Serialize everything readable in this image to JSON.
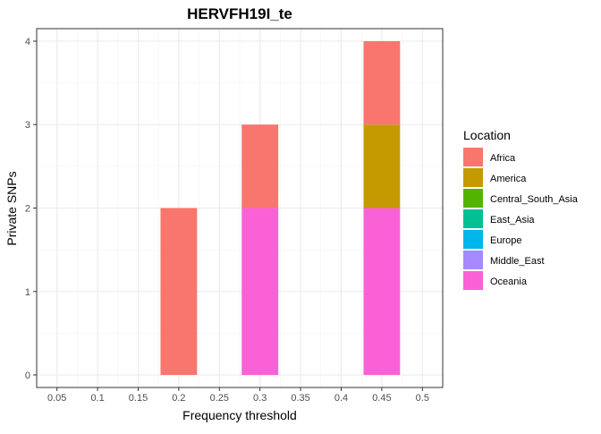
{
  "chart_data": {
    "type": "bar",
    "stacked": true,
    "title": "HERVFH19I_te",
    "xlabel": "Frequency threshold",
    "ylabel": "Private SNPs",
    "x_ticks": [
      "0.05",
      "0.1",
      "0.15",
      "0.2",
      "0.25",
      "0.3",
      "0.35",
      "0.4",
      "0.45",
      "0.5"
    ],
    "y_ticks": [
      "0",
      "1",
      "2",
      "3",
      "4"
    ],
    "xlim": [
      0.025,
      0.525
    ],
    "ylim": [
      -0.15,
      4.15
    ],
    "bar_width": 0.045,
    "grid": true,
    "legend_position": "right",
    "legend": {
      "title": "Location",
      "entries": [
        {
          "name": "Africa",
          "color": "#F8766D"
        },
        {
          "name": "America",
          "color": "#C49A00"
        },
        {
          "name": "Central_South_Asia",
          "color": "#53B400"
        },
        {
          "name": "East_Asia",
          "color": "#00C094"
        },
        {
          "name": "Europe",
          "color": "#00B6EB"
        },
        {
          "name": "Middle_East",
          "color": "#A58AFF"
        },
        {
          "name": "Oceania",
          "color": "#FB61D7"
        }
      ]
    },
    "series": [
      {
        "name": "Oceania",
        "color": "#FB61D7",
        "x": [
          0.2,
          0.3,
          0.45
        ],
        "values": [
          0,
          2,
          2
        ]
      },
      {
        "name": "America",
        "color": "#C49A00",
        "x": [
          0.2,
          0.3,
          0.45
        ],
        "values": [
          0,
          0,
          1
        ]
      },
      {
        "name": "Africa",
        "color": "#F8766D",
        "x": [
          0.2,
          0.3,
          0.45
        ],
        "values": [
          2,
          1,
          1
        ]
      }
    ]
  }
}
